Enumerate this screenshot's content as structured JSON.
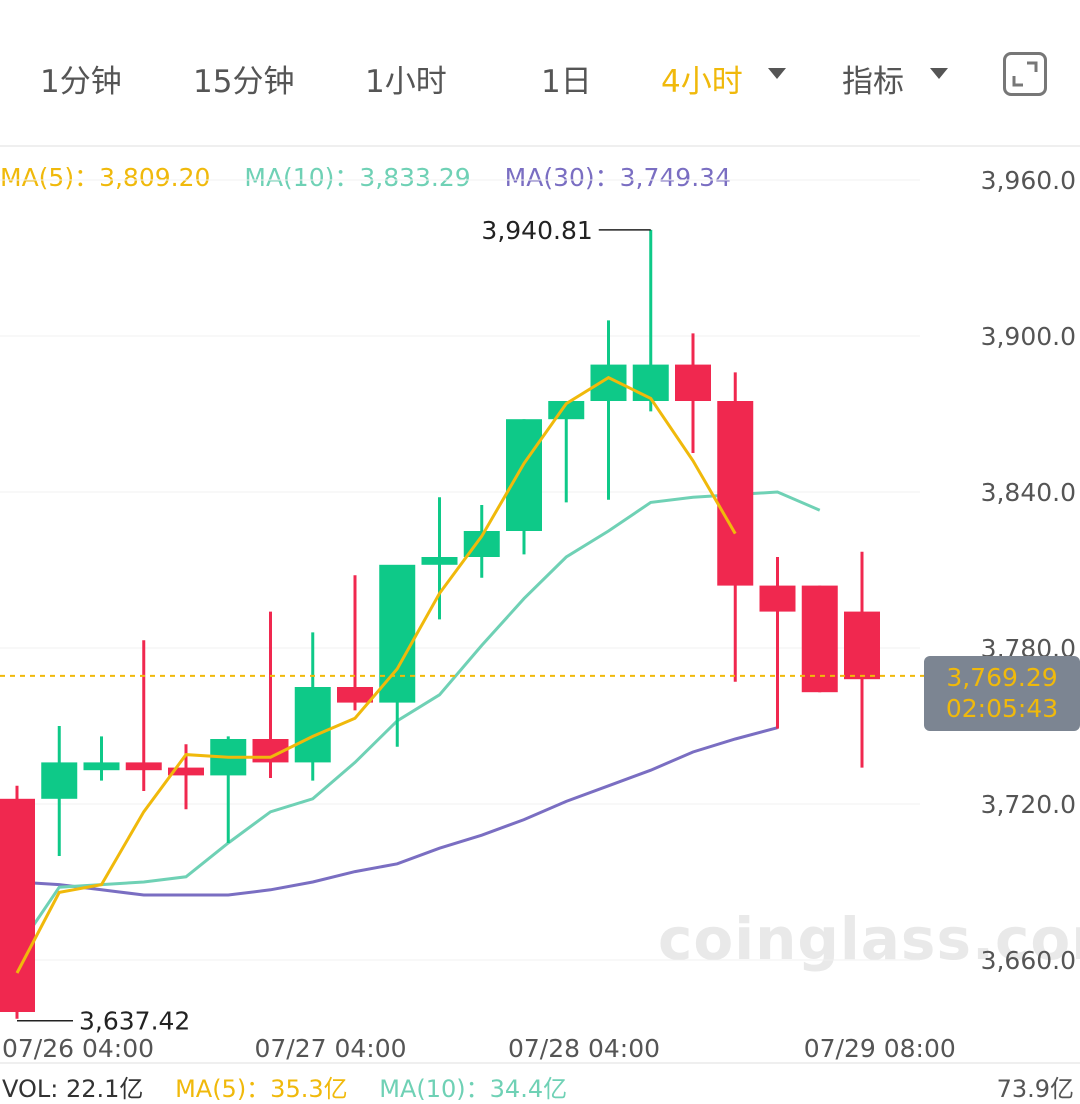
{
  "toolbar": {
    "tabs": [
      "1分钟",
      "15分钟",
      "1小时",
      "1日",
      "4小时",
      "指标"
    ],
    "active_tab": "4小时"
  },
  "legend": {
    "ma5": "MA(5)：3,809.20",
    "ma10": "MA(10)：3,833.29",
    "ma30": "MA(30)：3,749.34"
  },
  "price_tag": {
    "price": "3,769.29",
    "countdown": "02:05:43"
  },
  "footer": {
    "vol": "VOL: 22.1亿",
    "vol_ma5": "MA(5)：35.3亿",
    "vol_ma10": "MA(10)：34.4亿",
    "max_vol": "73.9亿"
  },
  "watermark": "coinglass.com",
  "colors": {
    "up": "#0ec988",
    "down": "#f0284f",
    "ma5": "#f0b90b",
    "ma10": "#6fd1b5",
    "ma30": "#7a6ec2",
    "accent": "#f0b90b",
    "grid": "#f0f0f0"
  },
  "icons": {
    "expand": "expand-icon",
    "dropdown": "chevron-down-icon"
  },
  "chart_data": {
    "type": "candlestick",
    "interval": "4h",
    "y_range": [
      3637,
      3973
    ],
    "y_ticks": [
      3960.0,
      3900.0,
      3840.0,
      3780.0,
      3720.0,
      3660.0
    ],
    "y_tick_labels": [
      "3,960.0",
      "3,900.0",
      "3,840.0",
      "3,780.0",
      "3,720.0",
      "3,660.0"
    ],
    "x_tick_labels": [
      {
        "index": 0,
        "label": "07/26 04:00"
      },
      {
        "index": 6,
        "label": "07/27 04:00"
      },
      {
        "index": 12,
        "label": "07/28 04:00"
      },
      {
        "index": 19,
        "label": "07/29 08:00"
      }
    ],
    "candles": [
      {
        "o": 3722,
        "h": 3727,
        "l": 3637.42,
        "c": 3640
      },
      {
        "o": 3722,
        "h": 3750,
        "l": 3700,
        "c": 3736
      },
      {
        "o": 3733,
        "h": 3746,
        "l": 3729,
        "c": 3736
      },
      {
        "o": 3736,
        "h": 3783,
        "l": 3725,
        "c": 3733
      },
      {
        "o": 3734,
        "h": 3743,
        "l": 3718,
        "c": 3731
      },
      {
        "o": 3731,
        "h": 3746,
        "l": 3705,
        "c": 3745
      },
      {
        "o": 3745,
        "h": 3794,
        "l": 3730,
        "c": 3736
      },
      {
        "o": 3736,
        "h": 3786,
        "l": 3729,
        "c": 3765
      },
      {
        "o": 3765,
        "h": 3808,
        "l": 3756,
        "c": 3759
      },
      {
        "o": 3759,
        "h": 3810,
        "l": 3742,
        "c": 3812
      },
      {
        "o": 3812,
        "h": 3838,
        "l": 3791,
        "c": 3815
      },
      {
        "o": 3815,
        "h": 3835,
        "l": 3807,
        "c": 3825
      },
      {
        "o": 3825,
        "h": 3868,
        "l": 3816,
        "c": 3868
      },
      {
        "o": 3868,
        "h": 3874,
        "l": 3836,
        "c": 3875
      },
      {
        "o": 3875,
        "h": 3906,
        "l": 3837,
        "c": 3889
      },
      {
        "o": 3875,
        "h": 3940.81,
        "l": 3871,
        "c": 3889
      },
      {
        "o": 3889,
        "h": 3901,
        "l": 3855,
        "c": 3875
      },
      {
        "o": 3875,
        "h": 3886,
        "l": 3767,
        "c": 3804
      },
      {
        "o": 3804,
        "h": 3815,
        "l": 3749,
        "c": 3794
      },
      {
        "o": 3804,
        "h": 3804,
        "l": 3763,
        "c": 3763
      },
      {
        "o": 3794,
        "h": 3817,
        "l": 3734,
        "c": 3768
      }
    ],
    "ma5": [
      3655,
      3686,
      3689,
      3717,
      3739,
      3738,
      3738,
      3746,
      3753,
      3772,
      3801,
      3823,
      3851,
      3874,
      3884,
      3876,
      3852,
      3824
    ],
    "ma10": [
      3664,
      3688,
      3689,
      3690,
      3692,
      3705,
      3717,
      3722,
      3736,
      3752,
      3762,
      3781,
      3799,
      3815,
      3825,
      3836,
      3838,
      3839,
      3840,
      3833
    ],
    "ma30": [
      3690,
      3689,
      3687,
      3685,
      3685,
      3685,
      3687,
      3690,
      3694,
      3697,
      3703,
      3708,
      3714,
      3721,
      3727,
      3733,
      3740,
      3745,
      3749.34
    ],
    "high_label": "3,940.81",
    "low_label": "3,637.42",
    "current_price": 3769.29
  }
}
